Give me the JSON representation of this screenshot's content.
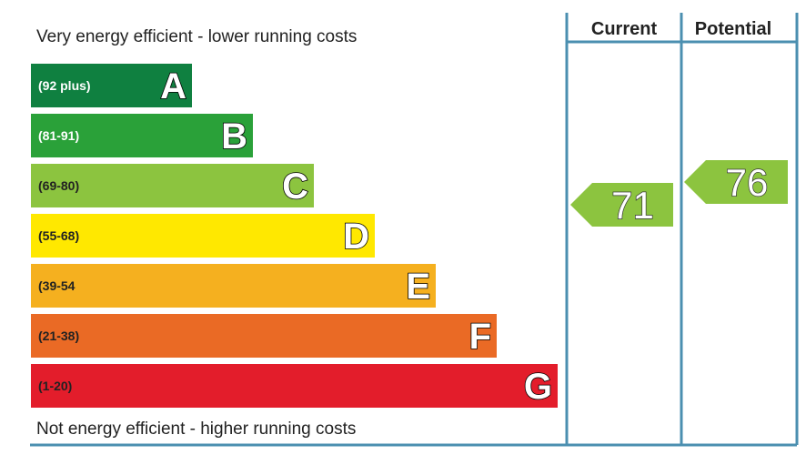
{
  "captions": {
    "top": "Very energy efficient - lower running costs",
    "bottom": "Not energy efficient - higher running costs"
  },
  "columns": {
    "current": "Current",
    "potential": "Potential"
  },
  "colors": {
    "frame": "#4b8fb0"
  },
  "chart_data": {
    "type": "bar",
    "bands": [
      {
        "range": "(92 plus)",
        "letter": "A",
        "color": "#0f8040",
        "range_color": "#ffffff"
      },
      {
        "range": "(81-91)",
        "letter": "B",
        "color": "#2aa139",
        "range_color": "#ffffff"
      },
      {
        "range": "(69-80)",
        "letter": "C",
        "color": "#8cc43f",
        "range_color": "#222222"
      },
      {
        "range": "(55-68)",
        "letter": "D",
        "color": "#ffe800",
        "range_color": "#222222"
      },
      {
        "range": "(39-54",
        "letter": "E",
        "color": "#f5b01f",
        "range_color": "#222222"
      },
      {
        "range": "(21-38)",
        "letter": "F",
        "color": "#ea6a25",
        "range_color": "#222222"
      },
      {
        "range": "(1-20)",
        "letter": "G",
        "color": "#e31d2b",
        "range_color": "#222222"
      }
    ],
    "ratings": {
      "current": {
        "value": 71,
        "color": "#8cc43f"
      },
      "potential": {
        "value": 76,
        "color": "#8cc43f"
      }
    }
  }
}
